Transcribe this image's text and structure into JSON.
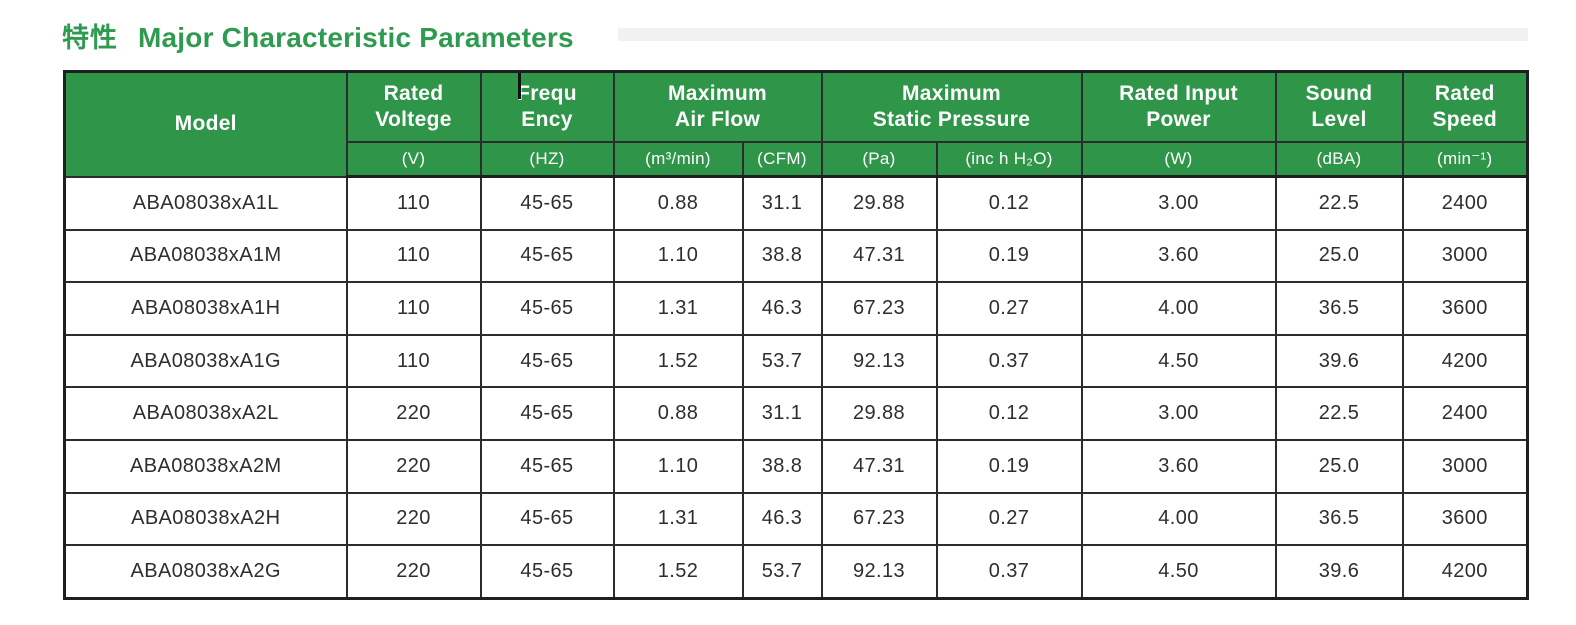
{
  "title": {
    "cjk": "特性",
    "en": "Major Characteristic Parameters"
  },
  "colors": {
    "header_green": "#2e9549",
    "title_green": "#2f9b50",
    "border_dark": "#1d1f21",
    "text_dark": "#2c2e30",
    "band_gray": "#f0f1f1"
  },
  "table": {
    "model_header": "Model",
    "top_headers": [
      "Rated\nVoltege",
      "Frequ\nEncy",
      "Maximum\nAir Flow",
      "Maximum\nStatic Pressure",
      "Rated Input\nPower",
      "Sound\nLevel",
      "Rated\nSpeed"
    ],
    "unit_headers": [
      "(V)",
      "(HZ)",
      "(m³/min)",
      "(CFM)",
      "(Pa)",
      "(inc h H₂O)",
      "(W)",
      "(dBA)",
      "(min⁻¹)"
    ],
    "rows": [
      [
        "ABA08038xA1L",
        "110",
        "45-65",
        "0.88",
        "31.1",
        "29.88",
        "0.12",
        "3.00",
        "22.5",
        "2400"
      ],
      [
        "ABA08038xA1M",
        "110",
        "45-65",
        "1.10",
        "38.8",
        "47.31",
        "0.19",
        "3.60",
        "25.0",
        "3000"
      ],
      [
        "ABA08038xA1H",
        "110",
        "45-65",
        "1.31",
        "46.3",
        "67.23",
        "0.27",
        "4.00",
        "36.5",
        "3600"
      ],
      [
        "ABA08038xA1G",
        "110",
        "45-65",
        "1.52",
        "53.7",
        "92.13",
        "0.37",
        "4.50",
        "39.6",
        "4200"
      ],
      [
        "ABA08038xA2L",
        "220",
        "45-65",
        "0.88",
        "31.1",
        "29.88",
        "0.12",
        "3.00",
        "22.5",
        "2400"
      ],
      [
        "ABA08038xA2M",
        "220",
        "45-65",
        "1.10",
        "38.8",
        "47.31",
        "0.19",
        "3.60",
        "25.0",
        "3000"
      ],
      [
        "ABA08038xA2H",
        "220",
        "45-65",
        "1.31",
        "46.3",
        "67.23",
        "0.27",
        "4.00",
        "36.5",
        "3600"
      ],
      [
        "ABA08038xA2G",
        "220",
        "45-65",
        "1.52",
        "53.7",
        "92.13",
        "0.37",
        "4.50",
        "39.6",
        "4200"
      ]
    ]
  }
}
